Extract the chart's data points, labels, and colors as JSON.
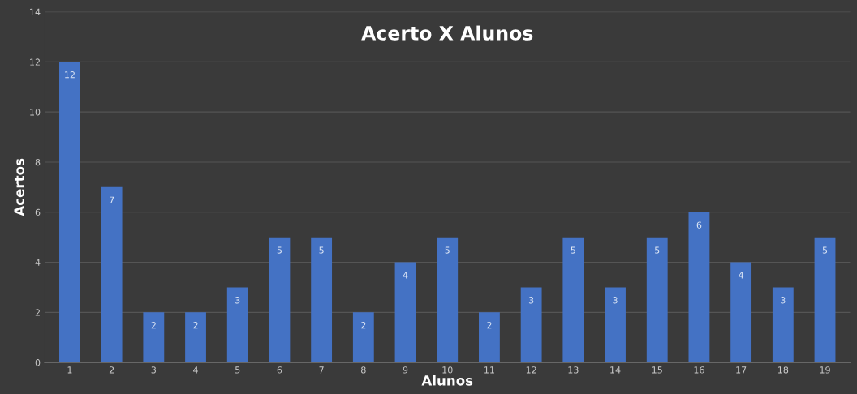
{
  "chart_data": {
    "type": "bar",
    "title": "Acerto X Alunos",
    "xlabel": "Alunos",
    "ylabel": "Acertos",
    "categories": [
      "1",
      "2",
      "3",
      "4",
      "5",
      "6",
      "7",
      "8",
      "9",
      "10",
      "11",
      "12",
      "13",
      "14",
      "15",
      "16",
      "17",
      "18",
      "19"
    ],
    "values": [
      12,
      7,
      2,
      2,
      3,
      5,
      5,
      2,
      4,
      5,
      2,
      3,
      5,
      3,
      5,
      6,
      4,
      3,
      5
    ],
    "color": "#4472c4",
    "ylim": [
      0,
      14
    ],
    "yticks": [
      0,
      2,
      4,
      6,
      8,
      10,
      12,
      14
    ],
    "grid": "y",
    "data_labels": true
  }
}
